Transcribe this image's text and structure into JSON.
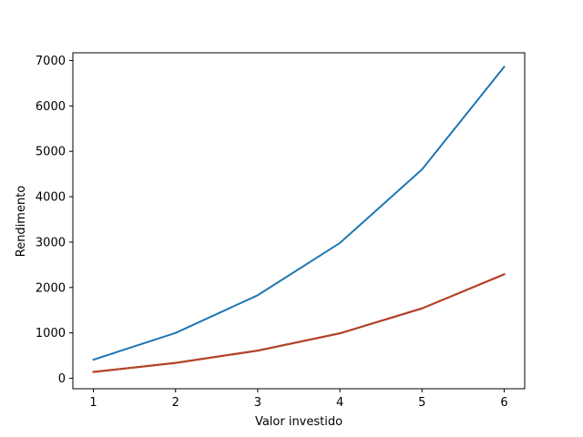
{
  "chart_data": {
    "type": "line",
    "title": "",
    "xlabel": "Valor investido",
    "ylabel": "Rendimento",
    "x": [
      1,
      2,
      3,
      4,
      5,
      6
    ],
    "xlim": [
      0.75,
      6.25
    ],
    "ylim": [
      -230,
      7170
    ],
    "xticks": [
      1,
      2,
      3,
      4,
      5,
      6
    ],
    "yticks": [
      0,
      1000,
      2000,
      3000,
      4000,
      5000,
      6000,
      7000
    ],
    "grid": false,
    "series": [
      {
        "color": "#1f77b4",
        "values": [
          410,
          1000,
          1830,
          2980,
          4600,
          6860
        ]
      },
      {
        "color": "#2ca02c",
        "values": [
          140,
          340,
          610,
          990,
          1540,
          2290
        ]
      },
      {
        "color": "#d62728",
        "values": [
          140,
          340,
          610,
          990,
          1540,
          2290
        ]
      },
      {
        "color": "#b5432a",
        "values": [
          140,
          340,
          610,
          990,
          1540,
          2290
        ]
      }
    ]
  }
}
